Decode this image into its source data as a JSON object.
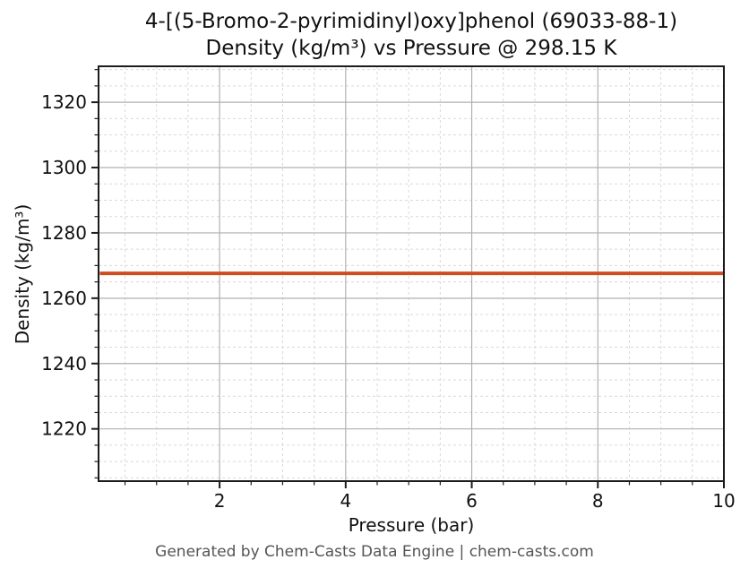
{
  "title_line1": "4-[(5-Bromo-2-pyrimidinyl)oxy]phenol (69033-88-1)",
  "title_line2": "Density (kg/m³) vs Pressure @ 298.15 K",
  "footer": "Generated by Chem-Casts Data Engine | chem-casts.com",
  "colors": {
    "line": "#cf4c20",
    "grid_major": "#b0b0b0",
    "grid_minor": "#d9d9d9",
    "frame": "#1c1c1c",
    "tick": "#1c1c1c",
    "text": "#111111",
    "footer_text": "#555555"
  },
  "chart_data": {
    "type": "line",
    "title": "4-[(5-Bromo-2-pyrimidinyl)oxy]phenol (69033-88-1) Density (kg/m³) vs Pressure @ 298.15 K",
    "xlabel": "Pressure (bar)",
    "ylabel": "Density (kg/m³)",
    "xlim": [
      0.08,
      10
    ],
    "ylim": [
      1204,
      1331
    ],
    "x_ticks": [
      2,
      4,
      6,
      8,
      10
    ],
    "y_ticks": [
      1220,
      1240,
      1260,
      1280,
      1300,
      1320
    ],
    "x_minor_step": 0.5,
    "y_minor_step": 5,
    "grid": "major solid + minor dashed",
    "legend": "none",
    "series": [
      {
        "name": "Density @ 298.15 K",
        "x": [
          0.1,
          1,
          2,
          3,
          4,
          5,
          6,
          7,
          8,
          9,
          10
        ],
        "y": [
          1267.6,
          1267.6,
          1267.6,
          1267.6,
          1267.6,
          1267.6,
          1267.6,
          1267.6,
          1267.6,
          1267.6,
          1267.6
        ]
      }
    ]
  }
}
